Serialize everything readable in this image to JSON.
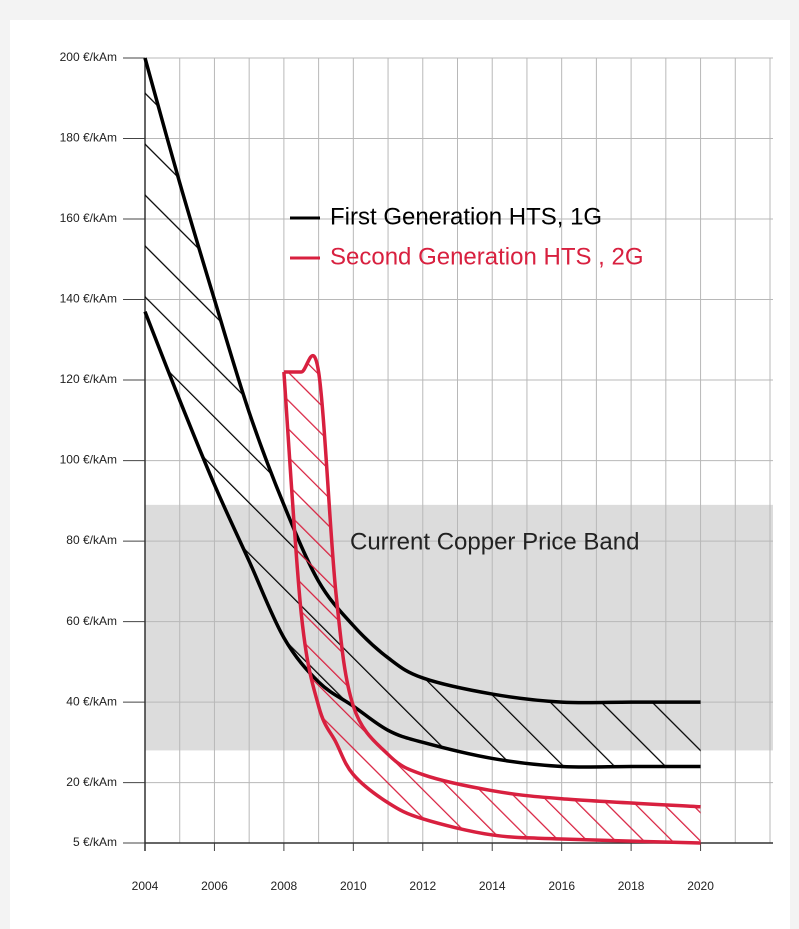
{
  "chart_data": {
    "type": "band-line",
    "xlim": [
      2004,
      2022
    ],
    "xticks": [
      2004,
      2006,
      2008,
      2010,
      2012,
      2014,
      2016,
      2018,
      2020
    ],
    "x_grid": [
      2004,
      2005,
      2006,
      2007,
      2008,
      2009,
      2010,
      2011,
      2012,
      2013,
      2014,
      2015,
      2016,
      2017,
      2018,
      2019,
      2020,
      2021,
      2022
    ],
    "ylim": [
      5,
      200
    ],
    "yticks": [
      {
        "value": 5,
        "label": "5 €/kAm"
      },
      {
        "value": 20,
        "label": "20 €/kAm"
      },
      {
        "value": 40,
        "label": "40 €/kAm"
      },
      {
        "value": 60,
        "label": "60 €/kAm"
      },
      {
        "value": 80,
        "label": "80 €/kAm"
      },
      {
        "value": 100,
        "label": "100 €/kAm"
      },
      {
        "value": 120,
        "label": "120 €/kAm"
      },
      {
        "value": 140,
        "label": "140 €/kAm"
      },
      {
        "value": 160,
        "label": "160 €/kAm"
      },
      {
        "value": 180,
        "label": "180 €/kAm"
      },
      {
        "value": 200,
        "label": "200 €/kAm"
      }
    ],
    "grid": true,
    "band": {
      "label": "Current Copper Price Band",
      "from": 28,
      "to": 89,
      "color": "#dcdcdc"
    },
    "series": [
      {
        "name": "First Generation HTS, 1G",
        "color": "#000000",
        "x": [
          2004,
          2005,
          2006,
          2007,
          2008,
          2009,
          2010,
          2011,
          2012,
          2014,
          2016,
          2018,
          2020
        ],
        "upper": [
          200,
          169,
          140,
          112,
          89,
          70,
          59,
          51,
          46,
          42,
          40,
          40,
          40
        ],
        "lower": [
          137,
          115,
          94,
          75,
          56,
          45,
          39,
          33,
          30,
          26,
          24,
          24,
          24
        ]
      },
      {
        "name": "Second Generation HTS , 2G",
        "color": "#d8203f",
        "x": [
          2008,
          2008.5,
          2009,
          2009.5,
          2010,
          2011,
          2012,
          2014,
          2016,
          2020
        ],
        "upper": [
          122,
          122,
          122,
          67,
          39,
          27,
          22,
          18,
          16,
          14
        ],
        "lower": [
          122,
          62,
          39,
          30,
          22,
          15,
          11,
          7,
          6,
          5
        ]
      }
    ]
  }
}
